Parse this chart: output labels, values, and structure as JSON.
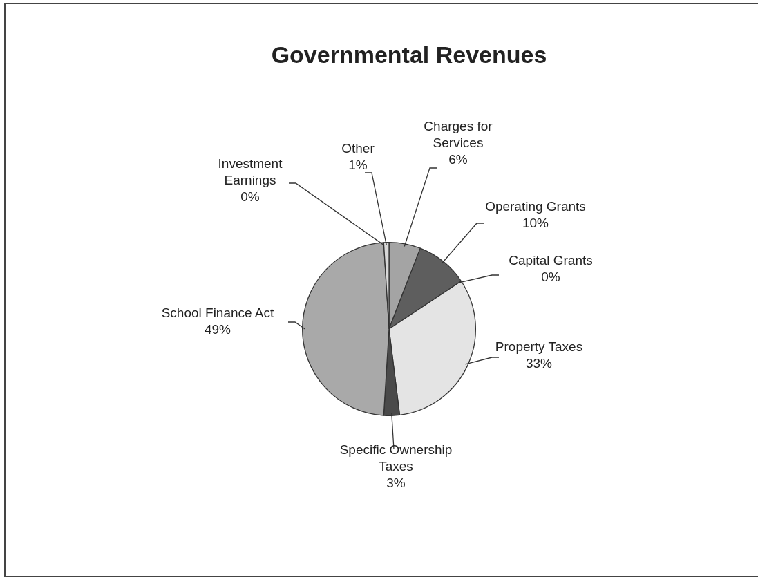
{
  "chart_data": {
    "type": "pie",
    "title": "Governmental Revenues",
    "categories": [
      "Charges for Services",
      "Operating Grants",
      "Capital Grants",
      "Property Taxes",
      "Specific Ownership Taxes",
      "School Finance Act",
      "Investment Earnings",
      "Other"
    ],
    "values": [
      6,
      10,
      0,
      33,
      3,
      49,
      0,
      1
    ],
    "colors": [
      "#a4a4a4",
      "#5e5e5e",
      "#8a8a8a",
      "#e4e4e4",
      "#4a4a4a",
      "#a9a9a9",
      "#7a7a7a",
      "#d8d8d8"
    ],
    "value_labels": [
      "6%",
      "10%",
      "0%",
      "33%",
      "3%",
      "49%",
      "0%",
      "1%"
    ],
    "legend": false
  }
}
